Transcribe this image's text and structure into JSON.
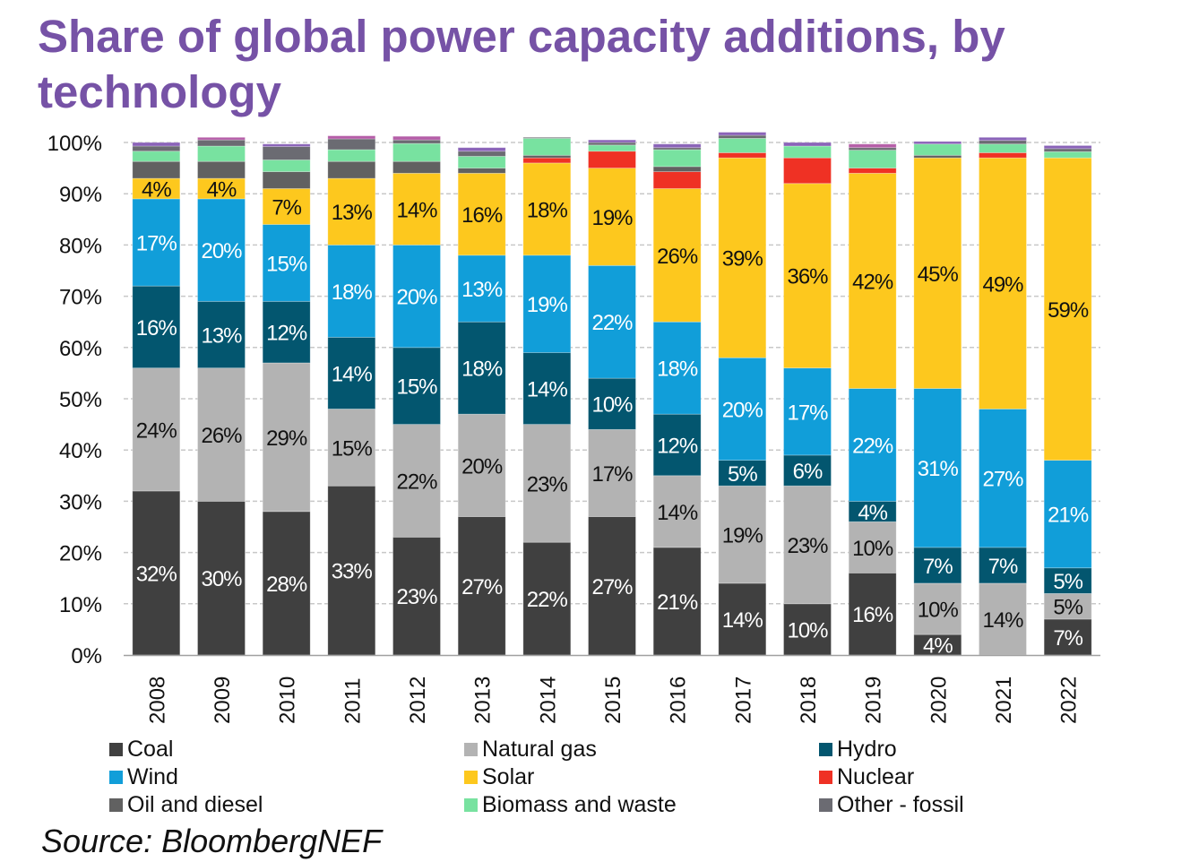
{
  "chart_data": {
    "type": "bar",
    "stacked": true,
    "title": "Share of global power capacity additions, by technology",
    "xlabel": "",
    "ylabel": "",
    "ylim": [
      0,
      100
    ],
    "yticks": [
      "0%",
      "10%",
      "20%",
      "30%",
      "40%",
      "50%",
      "60%",
      "70%",
      "80%",
      "90%",
      "100%"
    ],
    "ytick_values": [
      0,
      10,
      20,
      30,
      40,
      50,
      60,
      70,
      80,
      90,
      100
    ],
    "grid": true,
    "legend_position": "bottom",
    "categories": [
      "2008",
      "2009",
      "2010",
      "2011",
      "2012",
      "2013",
      "2014",
      "2015",
      "2016",
      "2017",
      "2018",
      "2019",
      "2020",
      "2021",
      "2022"
    ],
    "series": [
      {
        "name": "Coal",
        "color": "#404040",
        "label_color": "#ffffff",
        "values": [
          32,
          30,
          28,
          33,
          23,
          27,
          22,
          27,
          21,
          14,
          10,
          16,
          4,
          0,
          7
        ],
        "labels": [
          "32%",
          "30%",
          "28%",
          "33%",
          "23%",
          "27%",
          "22%",
          "27%",
          "21%",
          "14%",
          "10%",
          "16%",
          "4%",
          "",
          "7%"
        ]
      },
      {
        "name": "Natural gas",
        "color": "#b3b3b3",
        "label_color": "#111111",
        "values": [
          24,
          26,
          29,
          15,
          22,
          20,
          23,
          17,
          14,
          19,
          23,
          10,
          10,
          14,
          5
        ],
        "labels": [
          "24%",
          "26%",
          "29%",
          "15%",
          "22%",
          "20%",
          "23%",
          "17%",
          "14%",
          "19%",
          "23%",
          "10%",
          "10%",
          "14%",
          "5%"
        ]
      },
      {
        "name": "Hydro",
        "color": "#03566f",
        "label_color": "#ffffff",
        "values": [
          16,
          13,
          12,
          14,
          15,
          18,
          14,
          10,
          12,
          5,
          6,
          4,
          7,
          7,
          5
        ],
        "labels": [
          "16%",
          "13%",
          "12%",
          "14%",
          "15%",
          "18%",
          "14%",
          "10%",
          "12%",
          "5%",
          "6%",
          "4%",
          "7%",
          "7%",
          "5%"
        ]
      },
      {
        "name": "Wind",
        "color": "#119ed9",
        "label_color": "#ffffff",
        "values": [
          17,
          20,
          15,
          18,
          20,
          13,
          19,
          22,
          18,
          20,
          17,
          22,
          31,
          27,
          21
        ],
        "labels": [
          "17%",
          "20%",
          "15%",
          "18%",
          "20%",
          "13%",
          "19%",
          "22%",
          "18%",
          "20%",
          "17%",
          "22%",
          "31%",
          "27%",
          "21%"
        ]
      },
      {
        "name": "Solar",
        "color": "#fdc81e",
        "label_color": "#111111",
        "values": [
          4,
          4,
          7,
          13,
          14,
          16,
          18,
          19,
          26,
          39,
          36,
          42,
          45,
          49,
          59
        ],
        "labels": [
          "4%",
          "4%",
          "7%",
          "13%",
          "14%",
          "16%",
          "18%",
          "19%",
          "26%",
          "39%",
          "36%",
          "42%",
          "45%",
          "49%",
          "59%"
        ]
      },
      {
        "name": "Nuclear",
        "color": "#ef3124",
        "label_color": "#ffffff",
        "values": [
          0,
          0,
          0,
          0,
          0,
          0,
          1,
          3.3,
          3.3,
          1,
          5,
          1,
          0,
          1,
          0
        ],
        "labels": [
          "",
          "",
          "",
          "",
          "",
          "",
          "",
          "",
          "",
          "",
          "",
          "",
          "",
          "",
          ""
        ]
      },
      {
        "name": "Oil and diesel",
        "color": "#616161",
        "label_color": "#ffffff",
        "values": [
          3.3,
          3.3,
          3.3,
          3.3,
          2.3,
          1,
          0.5,
          0,
          1,
          0,
          0,
          0,
          0.5,
          0,
          0
        ],
        "labels": [
          "",
          "",
          "",
          "",
          "",
          "",
          "",
          "",
          "",
          "",
          "",
          "",
          "",
          "",
          ""
        ]
      },
      {
        "name": "Biomass and waste",
        "color": "#78e2a0",
        "label_color": "#111111",
        "values": [
          2,
          3,
          2.3,
          2.3,
          3.5,
          2.3,
          3.3,
          1.2,
          3.3,
          2.8,
          2.3,
          3.5,
          2.2,
          1.7,
          1.2
        ],
        "labels": [
          "",
          "",
          "",
          "",
          "",
          "",
          "",
          "",
          "",
          "",
          "",
          "",
          "",
          "",
          ""
        ]
      },
      {
        "name": "Other - fossil",
        "color": "#6b6b72",
        "label_color": "#ffffff",
        "values": [
          1,
          1.2,
          2.6,
          2.1,
          0.7,
          1,
          0.2,
          0.5,
          0.4,
          0.6,
          0,
          0.5,
          0,
          0.7,
          0.6
        ],
        "labels": [
          "",
          "",
          "",
          "",
          "",
          "",
          "",
          "",
          "",
          "",
          "",
          "",
          "",
          "",
          ""
        ]
      },
      {
        "name": "",
        "color": "#8a63b8",
        "label_color": "#ffffff",
        "values": [
          0.7,
          0,
          0.5,
          0,
          0,
          0.7,
          0,
          0.5,
          0.7,
          0.6,
          0.7,
          0,
          0.5,
          0.6,
          0.6
        ],
        "labels": [
          "",
          "",
          "",
          "",
          "",
          "",
          "",
          "",
          "",
          "",
          "",
          "",
          "",
          "",
          ""
        ]
      },
      {
        "name": "",
        "color": "#b55ea8",
        "label_color": "#ffffff",
        "values": [
          0,
          0.5,
          0,
          0.6,
          0.7,
          0,
          0,
          0,
          0,
          0,
          0,
          0.7,
          0,
          0,
          0
        ],
        "labels": [
          "",
          "",
          "",
          "",
          "",
          "",
          "",
          "",
          "",
          "",
          "",
          "",
          "",
          "",
          ""
        ]
      }
    ],
    "legend": [
      {
        "name": "Coal",
        "color": "#404040"
      },
      {
        "name": "Natural gas",
        "color": "#b3b3b3"
      },
      {
        "name": "Hydro",
        "color": "#03566f"
      },
      {
        "name": "Wind",
        "color": "#119ed9"
      },
      {
        "name": "Solar",
        "color": "#fdc81e"
      },
      {
        "name": "Nuclear",
        "color": "#ef3124"
      },
      {
        "name": "Oil and diesel",
        "color": "#616161"
      },
      {
        "name": "Biomass and waste",
        "color": "#78e2a0"
      },
      {
        "name": "Other - fossil",
        "color": "#6b6b72"
      }
    ]
  },
  "source_text": "Source: BloombergNEF",
  "colors": {
    "title": "#7652a6",
    "grid": "#c8c8c8",
    "axis": "#a0a0a0"
  }
}
